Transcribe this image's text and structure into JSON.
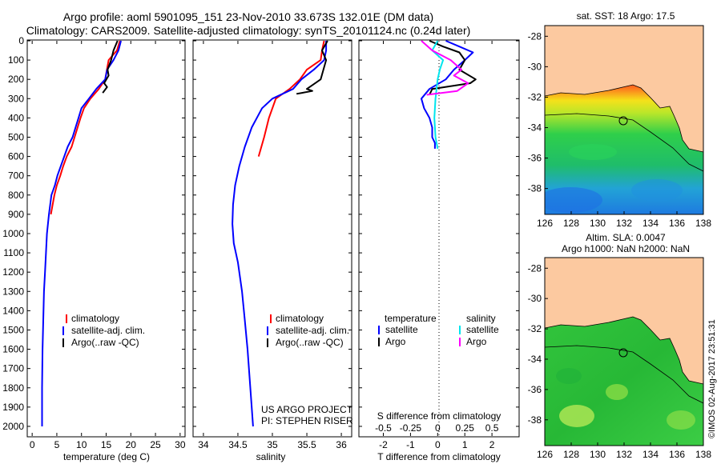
{
  "title": {
    "line1": "Argo profile: aoml 5901095_151 23-Nov-2010 33.673S 132.01E (DM data)",
    "line2": "Climatology: CARS2009. Satellite-adjusted climatology: synTS_20101124.nc (0.24d later)"
  },
  "depth_ticks": [
    "0",
    "100",
    "200",
    "300",
    "400",
    "500",
    "600",
    "700",
    "800",
    "900",
    "1000",
    "1100",
    "1200",
    "1300",
    "1400",
    "1500",
    "1600",
    "1700",
    "1800",
    "1900",
    "2000"
  ],
  "colors": {
    "climatology": "#ff0000",
    "satellite": "#0000ff",
    "argo": "#000000",
    "sal_satellite": "#00e5ee",
    "sal_argo": "#ff00ff",
    "land": "#fcc9a0"
  },
  "panels": {
    "temperature": {
      "xlabel": "temperature (deg C)",
      "xticks": [
        "0",
        "5",
        "10",
        "15",
        "20",
        "25",
        "30"
      ],
      "legend": [
        "climatology",
        "satellite-adj. clim.",
        "Argo(..raw -QC)"
      ]
    },
    "salinity": {
      "xlabel": "salinity",
      "xticks": [
        "34",
        "34.5",
        "35",
        "35.5",
        "36"
      ],
      "legend": [
        "climatology",
        "satellite-adj. clim.",
        "Argo(..raw -QC)"
      ],
      "credit1": "US ARGO PROJECT",
      "credit2": "PI: STEPHEN RISER"
    },
    "difference": {
      "top_label": "S difference from climatology",
      "top_ticks": [
        "-0.5",
        "-0.25",
        "0",
        "0.25",
        "0.5"
      ],
      "xlabel": "T difference from climatology",
      "xticks": [
        "-2",
        "-1",
        "0",
        "1",
        "2"
      ],
      "legend_temperature": "temperature",
      "legend_salinity": "salinity",
      "legend_satellite": "satellite",
      "legend_argo": "Argo"
    }
  },
  "maps": {
    "sst": {
      "title": "sat. SST: 18 Argo: 17.5",
      "yticks": [
        "-28",
        "-30",
        "-32",
        "-34",
        "-36",
        "-38"
      ],
      "xticks": [
        "126",
        "128",
        "130",
        "132",
        "134",
        "136",
        "138"
      ]
    },
    "sla": {
      "title1": "Altim. SLA: 0.0047",
      "title2": "Argo h1000: NaN h2000: NaN",
      "yticks": [
        "-28",
        "-30",
        "-32",
        "-34",
        "-36",
        "-38"
      ],
      "xticks": [
        "126",
        "128",
        "130",
        "132",
        "134",
        "136",
        "138"
      ]
    },
    "footer": "©IMOS 02-Aug-2017 23:51:31"
  },
  "chart_data": [
    {
      "type": "line",
      "title": "",
      "xlabel": "temperature (deg C)",
      "ylabel": "",
      "xlim": [
        -1,
        31
      ],
      "ylim": [
        2050,
        0
      ],
      "series": [
        {
          "name": "climatology",
          "x": [
            17.8,
            17.2,
            15.5,
            14.8,
            13.5,
            11.8,
            10.5,
            9.8,
            9.2,
            8.6,
            8.0,
            7.0,
            6.3,
            5.7,
            5.0,
            4.5,
            3.8
          ],
          "y": [
            0,
            50,
            100,
            200,
            250,
            300,
            350,
            400,
            450,
            500,
            550,
            600,
            650,
            700,
            750,
            800,
            900
          ]
        },
        {
          "name": "satellite-adj. clim.",
          "x": [
            18.0,
            17.5,
            16.5,
            15.2,
            14.8,
            13.0,
            11.5,
            10.0,
            9.4,
            8.8,
            8.2,
            7.2,
            6.5,
            5.8,
            5.1,
            4.6,
            3.9,
            3.4,
            3.0,
            2.8,
            2.6,
            2.4,
            2.3,
            2.2,
            2.1,
            2.0,
            2.0
          ],
          "y": [
            0,
            50,
            100,
            150,
            200,
            250,
            300,
            350,
            400,
            450,
            500,
            550,
            600,
            650,
            700,
            750,
            800,
            900,
            1000,
            1100,
            1200,
            1300,
            1400,
            1500,
            1600,
            1800,
            2000
          ]
        },
        {
          "name": "Argo(..raw -QC)",
          "x": [
            17.3,
            16.5,
            16.0,
            15.3,
            15.5,
            14.6,
            15.2,
            14.3
          ],
          "y": [
            0,
            50,
            100,
            150,
            180,
            220,
            240,
            270
          ]
        }
      ]
    },
    {
      "type": "line",
      "title": "",
      "xlabel": "salinity",
      "ylabel": "",
      "xlim": [
        33.85,
        36.15
      ],
      "ylim": [
        2050,
        0
      ],
      "series": [
        {
          "name": "climatology",
          "x": [
            35.75,
            35.72,
            35.7,
            35.5,
            35.4,
            35.25,
            35.05,
            34.95,
            34.88,
            34.8
          ],
          "y": [
            0,
            50,
            100,
            150,
            200,
            250,
            300,
            400,
            500,
            600
          ]
        },
        {
          "name": "satellite-adj. clim.",
          "x": [
            35.78,
            35.78,
            35.75,
            35.6,
            35.42,
            35.3,
            35.0,
            34.85,
            34.7,
            34.6,
            34.52,
            34.46,
            34.43,
            34.42,
            34.44,
            34.5,
            34.56,
            34.6,
            34.64,
            34.67,
            34.7,
            34.72
          ],
          "y": [
            0,
            50,
            100,
            150,
            200,
            250,
            300,
            350,
            450,
            550,
            650,
            750,
            850,
            950,
            1050,
            1150,
            1300,
            1450,
            1600,
            1750,
            1900,
            2000
          ]
        },
        {
          "name": "Argo(..raw -QC)",
          "x": [
            35.8,
            35.72,
            35.78,
            35.74,
            35.7,
            35.58,
            35.5,
            35.58,
            35.43,
            35.35
          ],
          "y": [
            0,
            50,
            100,
            150,
            200,
            230,
            250,
            260,
            270,
            275
          ]
        }
      ]
    },
    {
      "type": "line",
      "title": "",
      "xlabel": "T difference from climatology",
      "ylabel": "",
      "xlim": [
        -2.9,
        3.0
      ],
      "ylim": [
        2050,
        0
      ],
      "top_xlabel": "S difference from climatology",
      "top_xlim": [
        -0.725,
        0.75
      ],
      "series": [
        {
          "name": "temperature satellite",
          "axis": "T",
          "x": [
            0.3,
            0.8,
            1.3,
            1.0,
            0.6,
            0.3,
            -0.3,
            -0.6,
            -0.5,
            -0.3,
            -0.2,
            -0.2,
            -0.1,
            -0.1
          ],
          "y": [
            0,
            30,
            60,
            100,
            150,
            200,
            250,
            300,
            350,
            400,
            450,
            500,
            530,
            560
          ]
        },
        {
          "name": "temperature Argo",
          "axis": "T",
          "x": [
            -0.3,
            0.2,
            0.8,
            1.0,
            0.8,
            1.4,
            1.2,
            -0.2,
            -0.3
          ],
          "y": [
            0,
            30,
            60,
            100,
            150,
            200,
            220,
            250,
            280
          ]
        },
        {
          "name": "salinity satellite",
          "axis": "S",
          "x": [
            0.0,
            -0.05,
            0.05,
            0.02,
            0.0,
            -0.02,
            -0.03,
            -0.02,
            0.0
          ],
          "y": [
            0,
            50,
            100,
            150,
            200,
            300,
            400,
            500,
            560
          ]
        },
        {
          "name": "salinity Argo",
          "axis": "S",
          "x": [
            -0.15,
            -0.05,
            0.12,
            0.22,
            0.15,
            0.28,
            0.18,
            -0.1
          ],
          "y": [
            0,
            50,
            100,
            150,
            180,
            220,
            260,
            280
          ]
        }
      ]
    }
  ]
}
